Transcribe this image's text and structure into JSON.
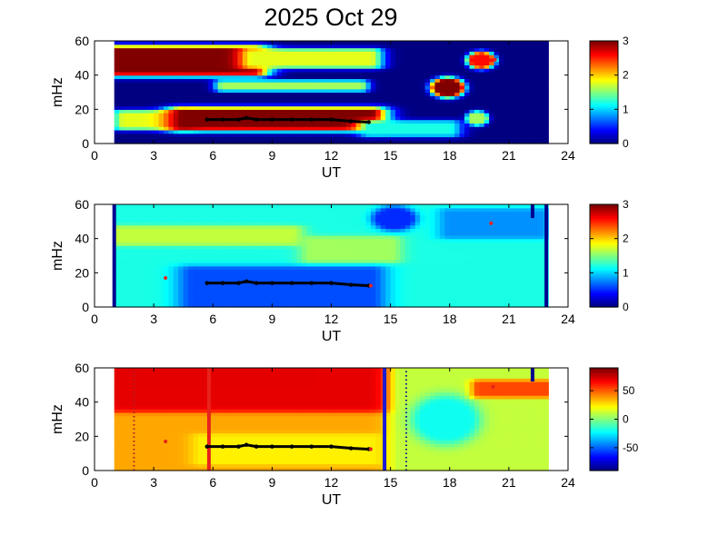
{
  "chart_data": {
    "title": "2025 Oct 29",
    "type": "heatmap",
    "panels": [
      {
        "id": "panel-1",
        "xlabel": "UT",
        "ylabel": "mHz",
        "xlim": [
          0,
          24
        ],
        "ylim": [
          0,
          60
        ],
        "xticks": [
          0,
          3,
          6,
          9,
          12,
          15,
          18,
          21,
          24
        ],
        "yticks": [
          0,
          20,
          40,
          60
        ],
        "data_x_range": [
          1,
          23
        ],
        "colorscale": "jet",
        "clim": [
          0,
          3
        ],
        "colorbar_ticks": [
          0,
          1,
          2,
          3
        ],
        "colorbar_tick_labels": [
          "0",
          "1",
          "2",
          "3"
        ],
        "background_value": 0,
        "features": [
          {
            "kind": "band",
            "x0": 1.2,
            "x1": 8.0,
            "y0": 42,
            "y1": 55,
            "value": 3.0,
            "fade": 4
          },
          {
            "kind": "band",
            "x0": 8.0,
            "x1": 14.0,
            "y0": 46,
            "y1": 54,
            "value": 1.8,
            "fade": 3
          },
          {
            "kind": "band",
            "x0": 6.5,
            "x1": 13.5,
            "y0": 32,
            "y1": 36,
            "value": 1.6,
            "fade": 2
          },
          {
            "kind": "band",
            "x0": 1.5,
            "x1": 4.5,
            "y0": 10,
            "y1": 18,
            "value": 1.8,
            "fade": 3
          },
          {
            "kind": "band",
            "x0": 4.5,
            "x1": 14.0,
            "y0": 10,
            "y1": 19,
            "value": 3.0,
            "fade": 4
          },
          {
            "kind": "band",
            "x0": 14.0,
            "x1": 18.0,
            "y0": 6,
            "y1": 12,
            "value": 1.2,
            "fade": 3
          },
          {
            "kind": "blob",
            "x": 17.9,
            "y": 33,
            "rx": 0.6,
            "ry": 4,
            "value": 3.0
          },
          {
            "kind": "blob",
            "x": 19.6,
            "y": 49,
            "rx": 0.5,
            "ry": 3.5,
            "value": 2.6
          },
          {
            "kind": "blob",
            "x": 19.4,
            "y": 15,
            "rx": 0.4,
            "ry": 3,
            "value": 1.6
          }
        ],
        "line": {
          "x": [
            5.7,
            6.5,
            7.3,
            7.7,
            8.2,
            9.0,
            10.0,
            11.0,
            12.0,
            13.0,
            13.9
          ],
          "y": [
            14,
            14,
            14,
            15,
            14,
            14,
            14,
            14,
            14,
            13,
            12.5
          ]
        },
        "red_points": [
          {
            "x": 20.3,
            "y": 49
          }
        ],
        "vertical_lines": []
      },
      {
        "id": "panel-2",
        "xlabel": "UT",
        "ylabel": "mHz",
        "xlim": [
          0,
          24
        ],
        "ylim": [
          0,
          60
        ],
        "xticks": [
          0,
          3,
          6,
          9,
          12,
          15,
          18,
          21,
          24
        ],
        "yticks": [
          0,
          20,
          40,
          60
        ],
        "data_x_range": [
          1,
          23
        ],
        "colorscale": "jet",
        "clim": [
          0,
          3
        ],
        "colorbar_ticks": [
          0,
          1,
          2,
          3
        ],
        "colorbar_tick_labels": [
          "0",
          "1",
          "2",
          "3"
        ],
        "background_value": 1.2,
        "features": [
          {
            "kind": "band",
            "x0": 5.0,
            "x1": 14.0,
            "y0": 0,
            "y1": 22,
            "value": 0.6,
            "fade": 4
          },
          {
            "kind": "band",
            "x0": 1.2,
            "x1": 10.0,
            "y0": 38,
            "y1": 46,
            "value": 1.7,
            "fade": 3
          },
          {
            "kind": "band",
            "x0": 11.0,
            "x1": 15.0,
            "y0": 28,
            "y1": 40,
            "value": 1.6,
            "fade": 3
          },
          {
            "kind": "blob",
            "x": 15.2,
            "y": 52,
            "rx": 0.8,
            "ry": 5,
            "value": 0.5
          },
          {
            "kind": "band",
            "x0": 18.0,
            "x1": 22.5,
            "y0": 42,
            "y1": 56,
            "value": 0.8,
            "fade": 3
          }
        ],
        "line": {
          "x": [
            5.7,
            6.5,
            7.3,
            7.7,
            8.2,
            9.0,
            10.0,
            11.0,
            12.0,
            13.0,
            13.9
          ],
          "y": [
            14,
            14,
            14,
            15,
            14,
            14,
            14,
            14,
            14,
            13,
            12.5
          ]
        },
        "red_points": [
          {
            "x": 3.6,
            "y": 17
          },
          {
            "x": 20.1,
            "y": 49
          },
          {
            "x": 14.0,
            "y": 12.5
          }
        ],
        "vertical_lines": [
          {
            "x": 1.0,
            "color": "#00008f",
            "style": "solid"
          },
          {
            "x": 22.9,
            "color": "#00008f",
            "style": "solid"
          },
          {
            "x": 22.2,
            "color": "#00008f",
            "style": "solid",
            "y0": 52,
            "y1": 60
          }
        ]
      },
      {
        "id": "panel-3",
        "xlabel": "UT",
        "ylabel": "mHz",
        "xlim": [
          0,
          24
        ],
        "ylim": [
          0,
          60
        ],
        "xticks": [
          0,
          3,
          6,
          9,
          12,
          15,
          18,
          21,
          24
        ],
        "yticks": [
          0,
          20,
          40,
          60
        ],
        "data_x_range": [
          1,
          23
        ],
        "colorscale": "jet",
        "clim": [
          -90,
          90
        ],
        "colorbar_ticks": [
          50,
          0,
          -50
        ],
        "colorbar_tick_labels": [
          "50",
          "0",
          "-50"
        ],
        "background_value": 10,
        "features": [
          {
            "kind": "band",
            "x0": 1.0,
            "x1": 15.5,
            "y0": 32,
            "y1": 60,
            "value": 72,
            "fade": 6
          },
          {
            "kind": "band",
            "x0": 1.0,
            "x1": 15.5,
            "y0": 0,
            "y1": 32,
            "value": 38,
            "fade": 4
          },
          {
            "kind": "band",
            "x0": 5.5,
            "x1": 14.0,
            "y0": 5,
            "y1": 20,
            "value": 25,
            "fade": 3
          },
          {
            "kind": "band",
            "x0": 15.5,
            "x1": 23.0,
            "y0": 0,
            "y1": 60,
            "value": 12,
            "fade": 3
          },
          {
            "kind": "blob",
            "x": 17.8,
            "y": 30,
            "rx": 1.2,
            "ry": 10,
            "value": -20
          },
          {
            "kind": "band",
            "x0": 19.5,
            "x1": 23.0,
            "y0": 44,
            "y1": 52,
            "value": 55,
            "fade": 2
          }
        ],
        "line": {
          "x": [
            5.7,
            6.5,
            7.3,
            7.7,
            8.2,
            9.0,
            10.0,
            11.0,
            12.0,
            13.0,
            13.9
          ],
          "y": [
            14,
            14,
            14,
            15,
            14,
            14,
            14,
            14,
            14,
            13,
            12.5
          ]
        },
        "red_points": [
          {
            "x": 3.6,
            "y": 17
          },
          {
            "x": 20.2,
            "y": 49
          },
          {
            "x": 14.0,
            "y": 12.5
          }
        ],
        "vertical_lines": [
          {
            "x": 5.8,
            "color": "#e8231c",
            "style": "solid"
          },
          {
            "x": 14.7,
            "color": "#1a1ad6",
            "style": "solid"
          },
          {
            "x": 2.0,
            "color": "#b0202a",
            "style": "dotted"
          },
          {
            "x": 15.8,
            "color": "#1a1a8a",
            "style": "dotted"
          },
          {
            "x": 22.2,
            "color": "#00008f",
            "style": "solid",
            "y0": 52,
            "y1": 60
          }
        ]
      }
    ]
  }
}
